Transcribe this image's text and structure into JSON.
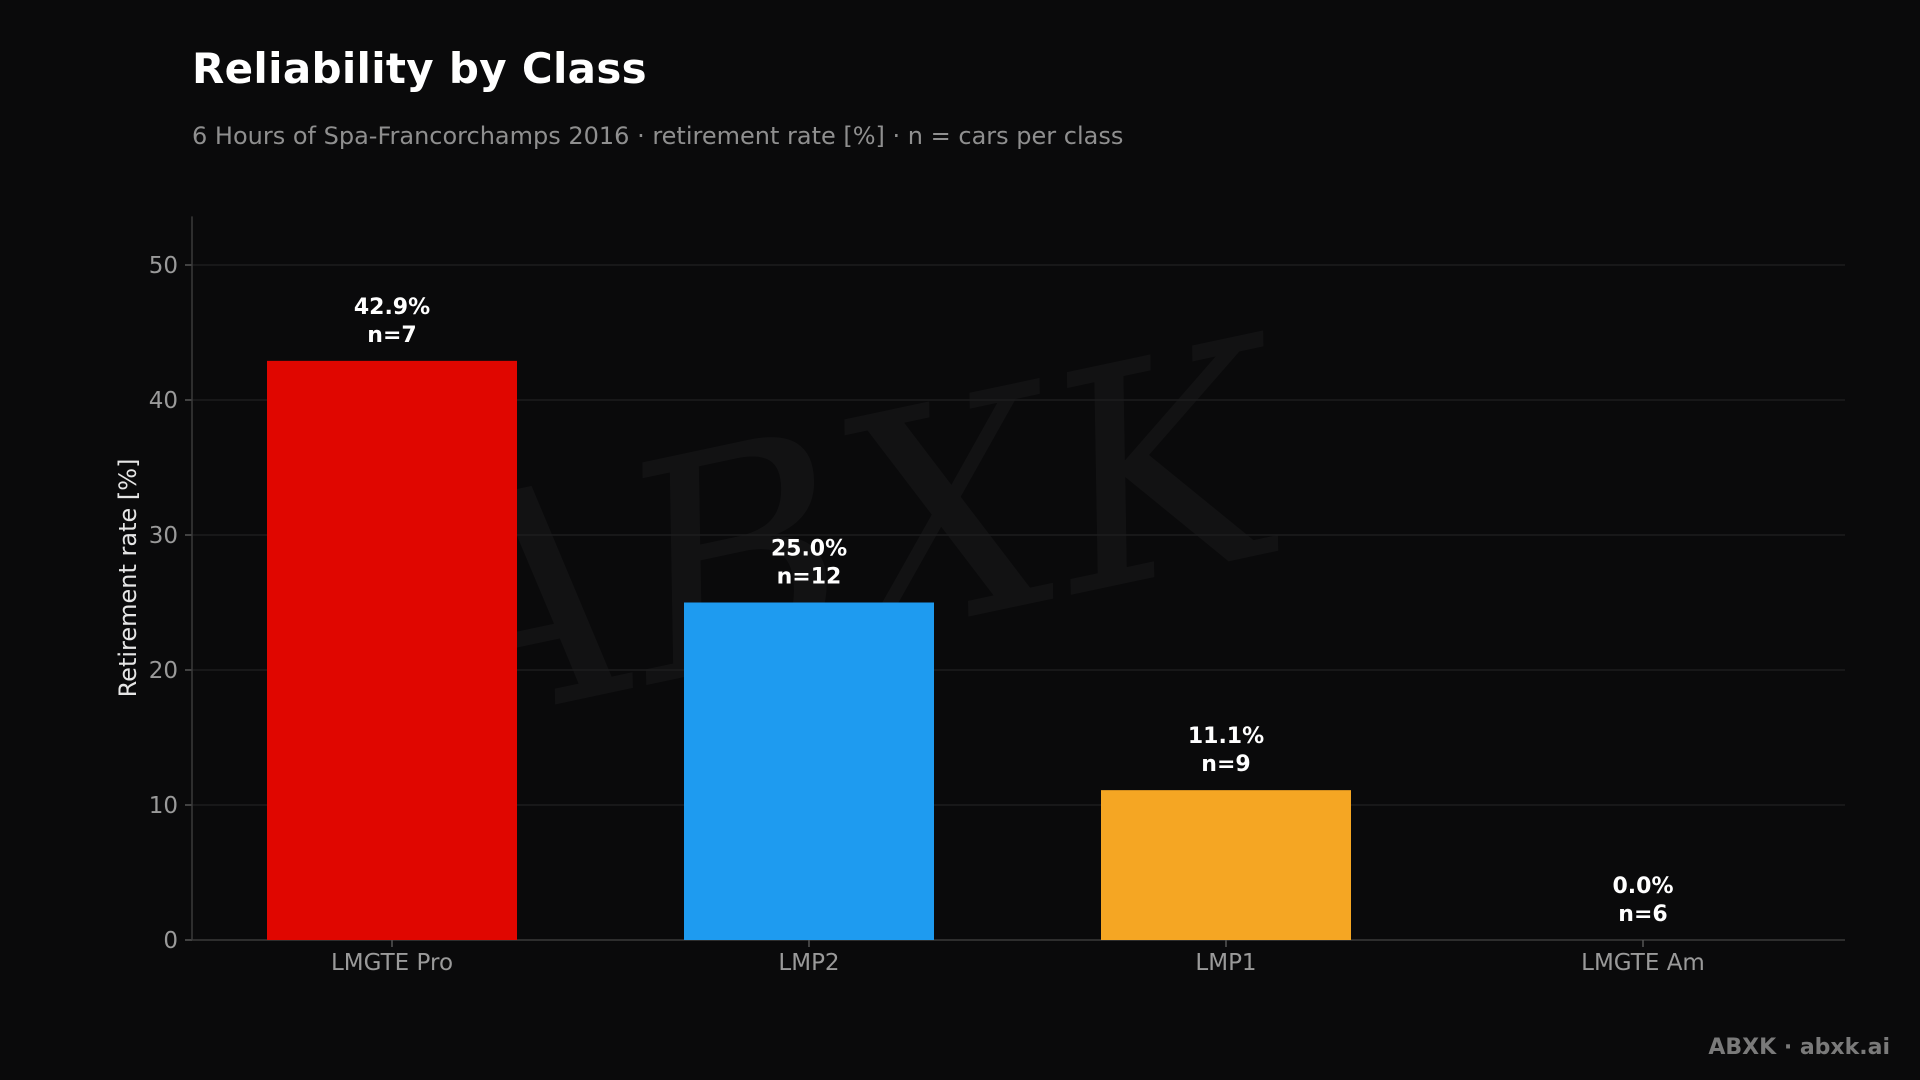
{
  "header": {
    "title": "Reliability by Class",
    "subtitle": "6 Hours of Spa-Francorchamps 2016 · retirement rate [%] · n = cars per class"
  },
  "footer": {
    "credit": "ABXK · abxk.ai"
  },
  "watermark": {
    "text": "ABXK"
  },
  "chart_data": {
    "type": "bar",
    "categories": [
      "LMGTE Pro",
      "LMP2",
      "LMP1",
      "LMGTE Am"
    ],
    "values": [
      42.9,
      25.0,
      11.1,
      0.0
    ],
    "value_labels": [
      "42.9%",
      "25.0%",
      "11.1%",
      "0.0%"
    ],
    "n_labels": [
      "n=7",
      "n=12",
      "n=9",
      "n=6"
    ],
    "colors": [
      "#e00600",
      "#1e9bf0",
      "#f5a623",
      "#8a8a8a"
    ],
    "ylabel": "Retirement rate [%]",
    "xlabel": "",
    "ylim": [
      0,
      53.6
    ],
    "yticks": [
      0,
      10,
      20,
      30,
      40,
      50
    ],
    "grid": true
  }
}
